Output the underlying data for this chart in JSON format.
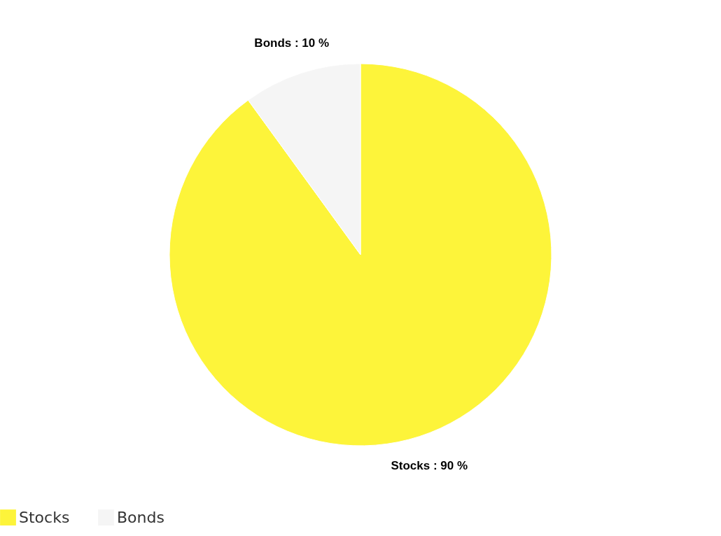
{
  "chart_data": {
    "type": "pie",
    "categories": [
      "Stocks",
      "Bonds"
    ],
    "values": [
      90,
      10
    ],
    "colors": [
      "#fdf43a",
      "#f5f5f5"
    ],
    "value_labels": [
      "Stocks : 90 %",
      "Bonds : 10 %"
    ],
    "legend": "bottom"
  }
}
